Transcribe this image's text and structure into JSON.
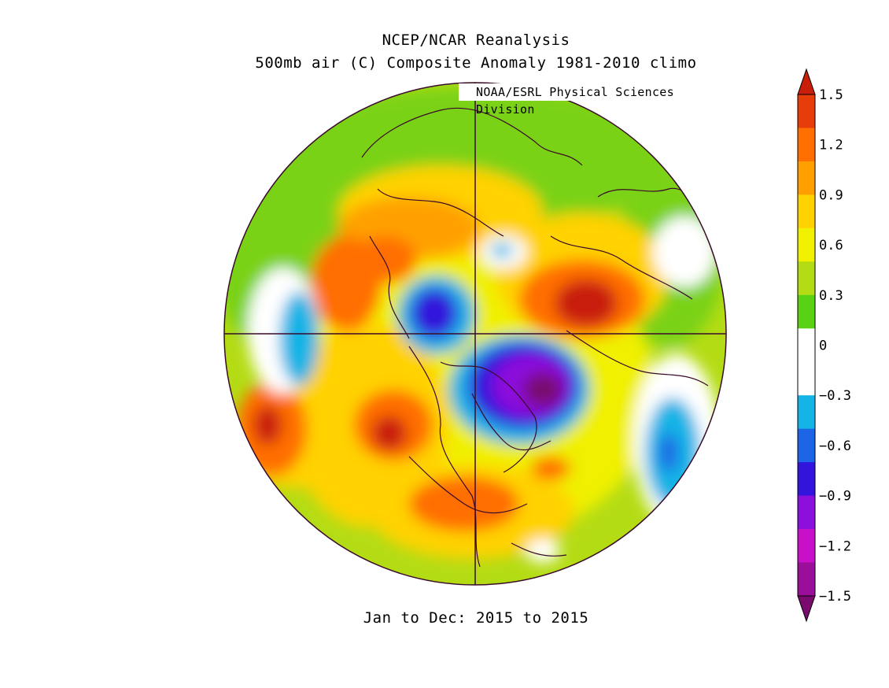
{
  "header": {
    "title": "NCEP/NCAR Reanalysis",
    "subtitle": "500mb air (C) Composite Anomaly 1981-2010 climo"
  },
  "credit": "NOAA/ESRL Physical Sciences Division",
  "footer": "Jan to Dec: 2015 to 2015",
  "colorbar": {
    "labels": [
      "1.5",
      "1.2",
      "0.9",
      "0.6",
      "0.3",
      "0",
      "-0.3",
      "-0.6",
      "-0.9",
      "-1.2",
      "-1.5"
    ],
    "colors": [
      "#7a0a6e",
      "#9a0e99",
      "#c810c8",
      "#8c10dc",
      "#3214dc",
      "#1e64e6",
      "#14b4e6",
      "#ffffff",
      "#ffffff",
      "#5ad214",
      "#b4dc14",
      "#f0f000",
      "#ffd200",
      "#ffa000",
      "#ff6e00",
      "#e63c0a",
      "#c81e0a"
    ],
    "units": "C"
  }
}
